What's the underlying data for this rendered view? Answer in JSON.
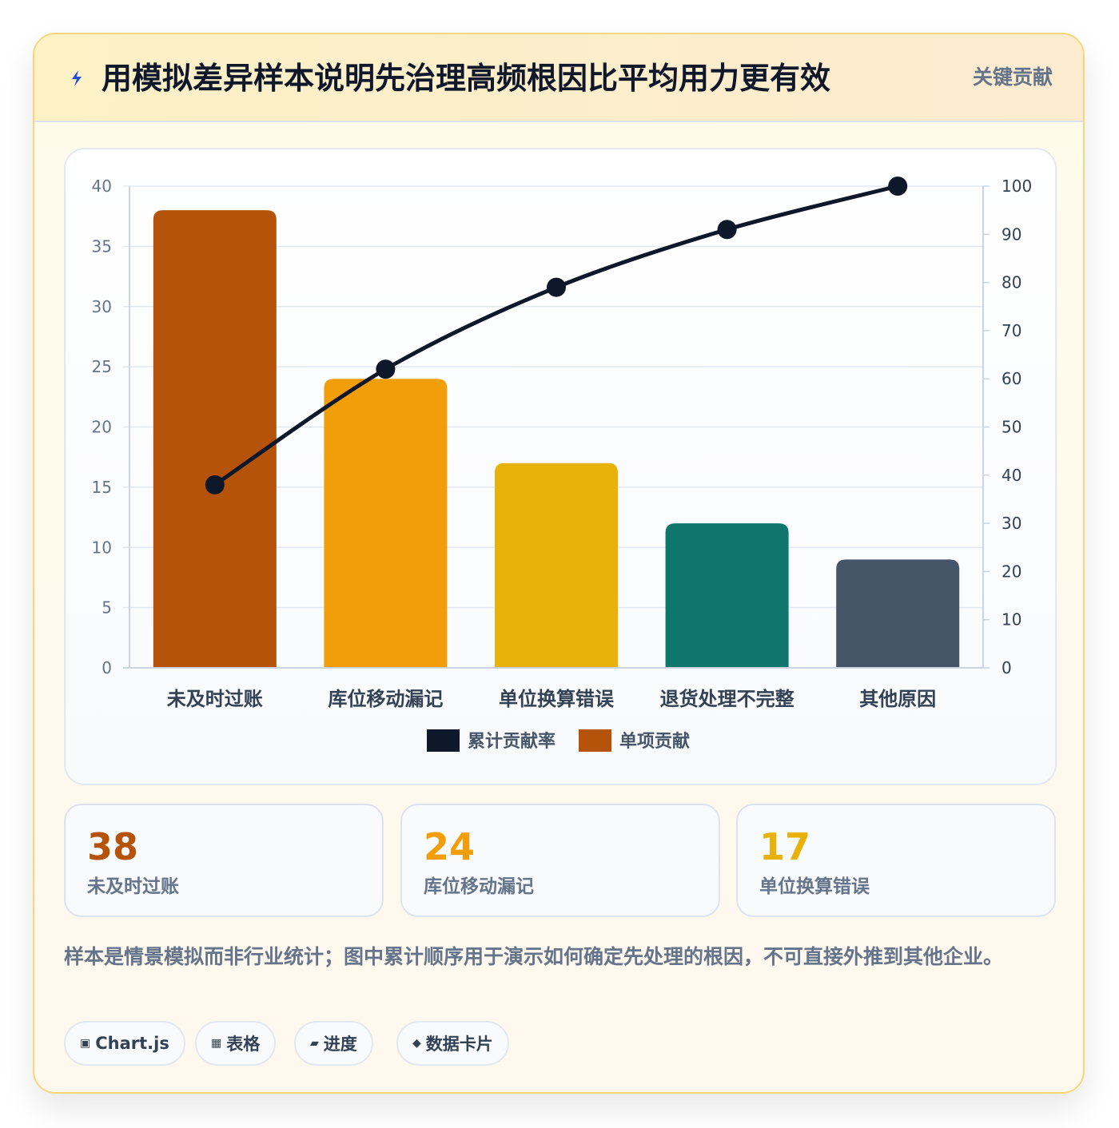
{
  "header": {
    "icon": "lightning-icon",
    "title": "用模拟差异样本说明先治理高频根因比平均用力更有效",
    "badge": "关键贡献"
  },
  "chart_data": {
    "type": "bar",
    "categories": [
      "未及时过账",
      "库位移动漏记",
      "单位换算错误",
      "退货处理不完整",
      "其他原因"
    ],
    "series": [
      {
        "name": "单项贡献",
        "type": "bar",
        "axis": "left",
        "values": [
          38,
          24,
          17,
          12,
          9
        ],
        "colors": [
          "#b45309",
          "#f29e0b",
          "#e8b20b",
          "#0f766e",
          "#475569"
        ]
      },
      {
        "name": "累计贡献率",
        "type": "line",
        "axis": "right",
        "values": [
          38,
          62,
          79,
          91,
          100
        ],
        "color": "#0f172a"
      }
    ],
    "y_left": {
      "min": 0,
      "max": 40,
      "ticks": [
        0,
        5,
        10,
        15,
        20,
        25,
        30,
        35,
        40
      ]
    },
    "y_right": {
      "min": 0,
      "max": 100,
      "ticks": [
        0,
        10,
        20,
        30,
        40,
        50,
        60,
        70,
        80,
        90,
        100
      ]
    },
    "legend": [
      {
        "label": "累计贡献率",
        "color": "#0f172a"
      },
      {
        "label": "单项贡献",
        "color": "#b45309"
      }
    ],
    "legend_position": "bottom",
    "grid": true
  },
  "stats": [
    {
      "value": "38",
      "label": "未及时过账",
      "color": "#b45309"
    },
    {
      "value": "24",
      "label": "库位移动漏记",
      "color": "#f29e0b"
    },
    {
      "value": "17",
      "label": "单位换算错误",
      "color": "#e8b20b"
    }
  ],
  "note": "样本是情景模拟而非行业统计；图中累计顺序用于演示如何确定先处理的根因，不可直接外推到其他企业。",
  "tags": [
    {
      "icon": "▣",
      "label": "Chart.js"
    },
    {
      "icon": "▦",
      "label": "表格"
    },
    {
      "icon": "▰",
      "label": "进度"
    },
    {
      "icon": "◆",
      "label": "数据卡片"
    }
  ]
}
